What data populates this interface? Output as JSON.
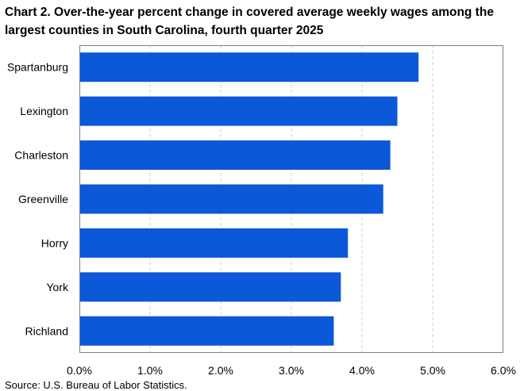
{
  "chart_data": {
    "type": "bar",
    "orientation": "horizontal",
    "title": "Chart 2. Over-the-year percent change in covered average weekly wages among the largest counties in South Carolina, fourth quarter 2025",
    "categories": [
      "Spartanburg",
      "Lexington",
      "Charleston",
      "Greenville",
      "Horry",
      "York",
      "Richland"
    ],
    "values": [
      4.8,
      4.5,
      4.4,
      4.3,
      3.8,
      3.7,
      3.6
    ],
    "xlim": [
      0,
      6
    ],
    "xticks": [
      0,
      1,
      2,
      3,
      4,
      5,
      6
    ],
    "xtick_labels": [
      "0.0%",
      "1.0%",
      "2.0%",
      "3.0%",
      "4.0%",
      "5.0%",
      "6.0%"
    ],
    "xlabel": "",
    "ylabel": "",
    "grid": "vertical dashed",
    "legend": "none",
    "bar_color": "#0b58d8",
    "grid_color": "#d0d0d0",
    "frame_color": "#7f7f7f",
    "source": "Source: U.S. Bureau of Labor Statistics."
  }
}
